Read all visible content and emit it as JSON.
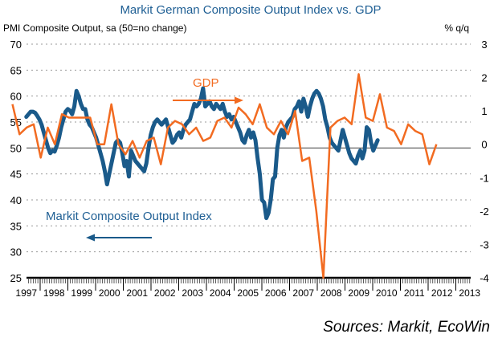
{
  "chart_data": {
    "type": "line",
    "title": "Markit German Composite Output Index vs. GDP",
    "left_axis_title": "PMI Composite Output, sa (50=no change)",
    "right_axis_title": "% q/q",
    "left_axis": {
      "ylim": [
        25,
        70
      ],
      "ticks": [
        70,
        65,
        60,
        55,
        50,
        45,
        40,
        35,
        30,
        25
      ]
    },
    "right_axis": {
      "ylim": [
        -4,
        3
      ],
      "ticks": [
        3,
        2,
        1,
        0,
        -1,
        -2,
        -3,
        -4
      ]
    },
    "x_tick_labels": [
      "1997",
      "1998",
      "1999",
      "2000",
      "2001",
      "2002",
      "2003",
      "2004",
      "2005",
      "2006",
      "2007",
      "2008",
      "2009",
      "2010",
      "2011",
      "2012",
      "2013"
    ],
    "grid": "horizontal dotted",
    "annotations": [
      {
        "text": "GDP",
        "arrow": "right",
        "series": "GDP"
      },
      {
        "text": "Markit Composite Output Index",
        "arrow": "left",
        "series": "PMI"
      }
    ],
    "source": "Sources: Markit, EcoWin",
    "series": [
      {
        "name": "Markit Composite Output Index",
        "axis": "left",
        "color": "#1a5a8a",
        "frequency": "monthly",
        "start": 1998.0,
        "values": [
          56.0,
          56.5,
          57.0,
          57.0,
          56.8,
          56.2,
          55.5,
          54.5,
          53.0,
          51.5,
          50.0,
          49.0,
          49.5,
          49.3,
          50.5,
          52.0,
          54.0,
          55.5,
          57.0,
          57.5,
          57.2,
          56.5,
          58.0,
          61.0,
          60.0,
          58.5,
          57.5,
          57.5,
          55.5,
          54.5,
          54.0,
          53.0,
          52.0,
          50.5,
          49.0,
          47.5,
          45.5,
          43.0,
          45.0,
          47.0,
          49.0,
          51.0,
          51.5,
          51.0,
          49.0,
          46.5,
          47.5,
          44.5,
          49.5,
          48.5,
          47.5,
          47.0,
          46.5,
          46.0,
          45.5,
          47.0,
          50.0,
          52.5,
          54.0,
          55.0,
          55.5,
          55.0,
          54.5,
          55.0,
          55.5,
          54.0,
          52.5,
          51.0,
          51.5,
          52.5,
          53.0,
          52.0,
          53.5,
          54.5,
          55.0,
          55.5,
          57.0,
          58.5,
          58.0,
          58.5,
          59.5,
          61.5,
          58.0,
          58.5,
          59.0,
          58.0,
          57.5,
          58.5,
          58.0,
          57.5,
          58.5,
          57.0,
          56.0,
          56.5,
          55.5,
          56.0,
          55.0,
          54.0,
          53.0,
          51.5,
          51.0,
          52.5,
          53.5,
          52.0,
          53.0,
          51.5,
          48.0,
          45.0,
          40.0,
          39.5,
          36.5,
          37.5,
          40.0,
          44.0,
          44.5,
          50.0,
          52.5,
          53.5,
          52.0,
          54.0,
          55.0,
          55.5,
          56.0,
          57.5,
          58.0,
          59.0,
          57.0,
          59.5,
          58.0,
          56.0,
          58.0,
          59.5,
          60.5,
          61.0,
          60.5,
          59.5,
          58.0,
          55.5,
          54.0,
          52.0,
          51.0,
          50.5,
          50.0,
          49.5,
          51.5,
          53.5,
          52.0,
          50.5,
          49.0,
          48.0,
          47.5,
          47.0,
          48.5,
          49.5,
          48.0,
          49.5,
          54.0,
          53.5,
          51.0,
          49.5,
          50.5,
          51.5
        ]
      },
      {
        "name": "GDP",
        "axis": "right",
        "color": "#f26b21",
        "frequency": "quarterly",
        "start": 1997.5,
        "values": [
          1.2,
          0.3,
          0.5,
          0.6,
          -0.4,
          0.5,
          0.0,
          0.9,
          0.8,
          0.8,
          0.8,
          0.8,
          0.0,
          0.0,
          1.2,
          0.0,
          -0.3,
          0.1,
          -0.4,
          0.1,
          0.2,
          -0.6,
          0.5,
          0.7,
          0.6,
          0.3,
          0.5,
          0.1,
          0.2,
          0.7,
          0.8,
          0.5,
          1.1,
          0.9,
          0.6,
          1.2,
          0.5,
          0.3,
          0.7,
          0.3,
          1.0,
          -0.5,
          -0.4,
          -2.0,
          -4.0,
          0.5,
          0.7,
          0.8,
          0.6,
          2.1,
          0.8,
          0.7,
          1.5,
          0.5,
          0.4,
          0.0,
          0.6,
          0.4,
          0.3,
          -0.6,
          0.0
        ]
      }
    ]
  }
}
